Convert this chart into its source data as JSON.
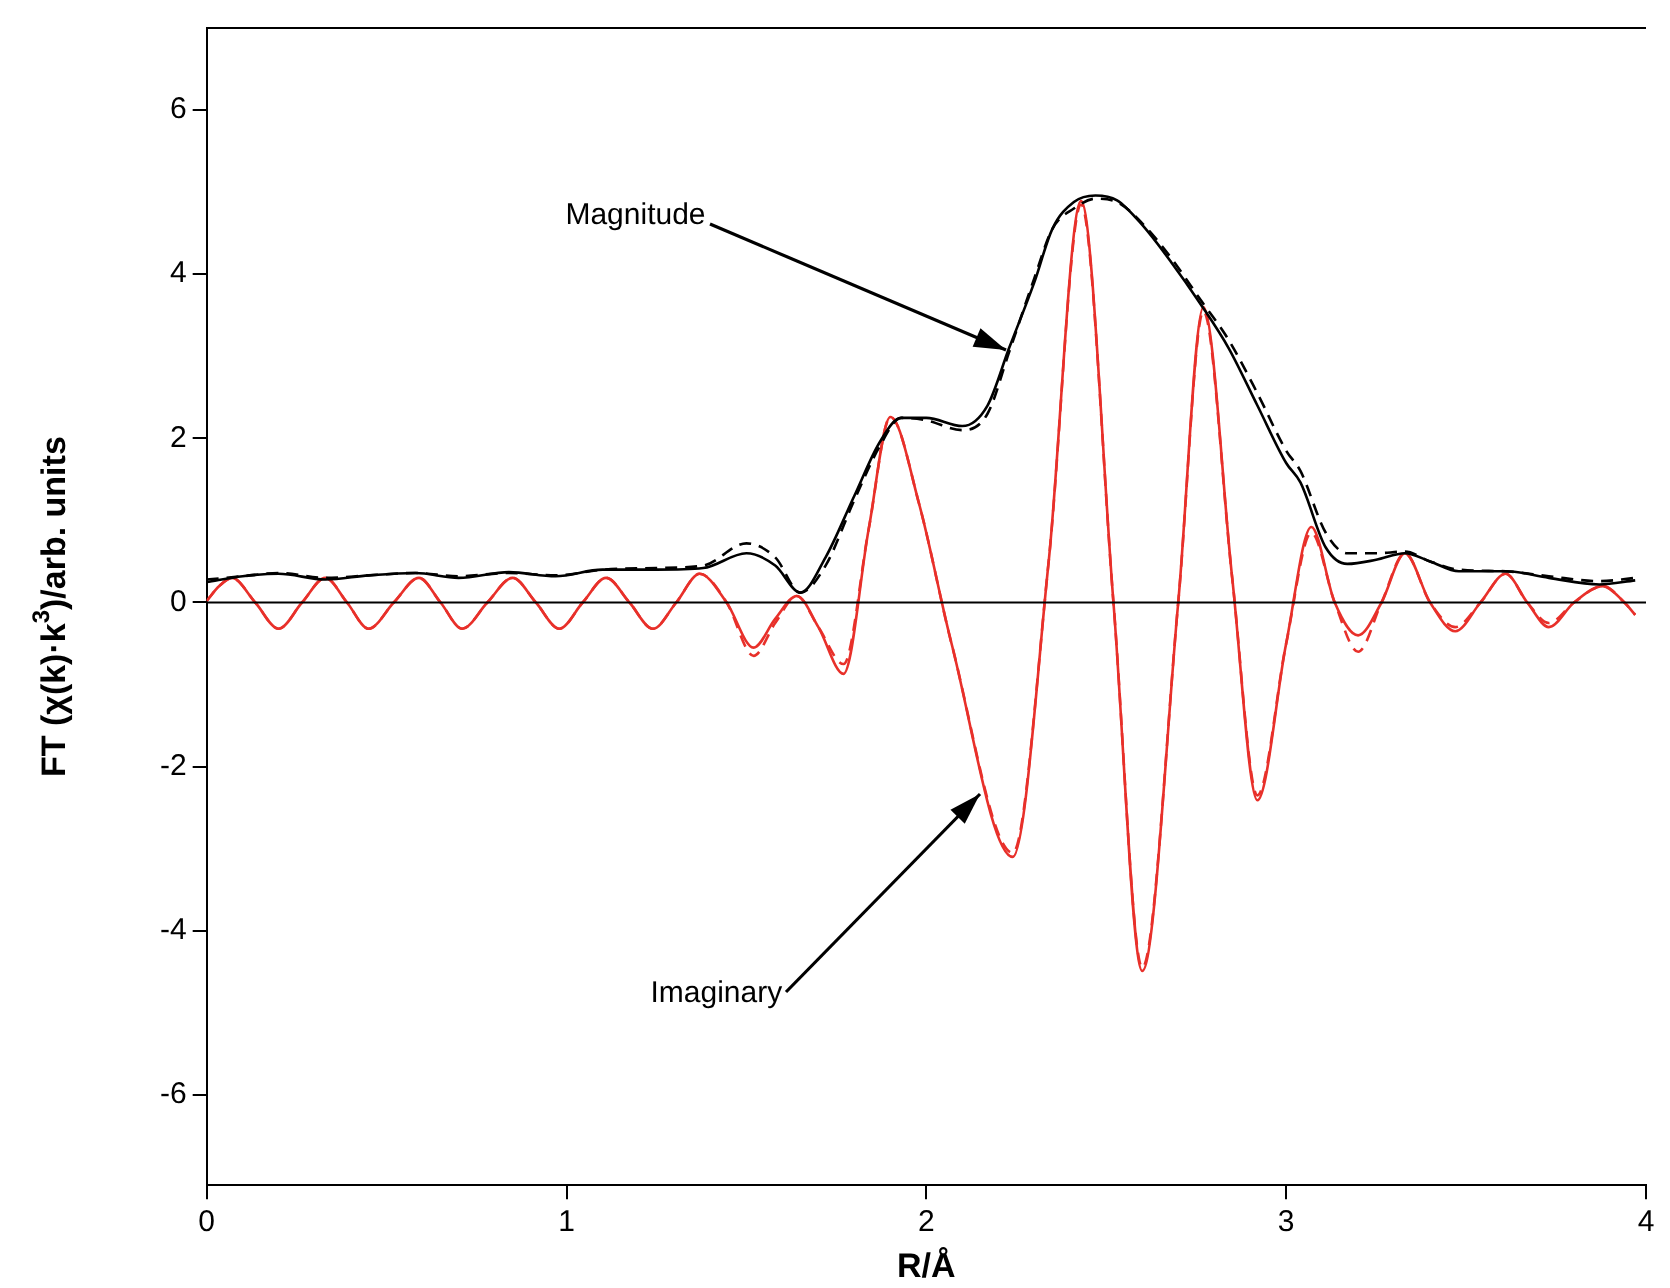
{
  "chart_data": {
    "type": "line",
    "xlabel": "R/Å",
    "ylabel": "FT (χ(k)·k$^{3}$)/arb. units",
    "xlim": [
      0,
      4
    ],
    "ylim": [
      -7.1,
      7
    ],
    "xticks": [
      0,
      1,
      2,
      3,
      4
    ],
    "yticks": [
      -6,
      -4,
      -2,
      0,
      2,
      4,
      6
    ],
    "grid": false,
    "legend": false,
    "marker": "none",
    "ref_lines": [
      {
        "axis": "y",
        "value": 0,
        "color": "#000000"
      }
    ],
    "annotations": [
      {
        "text": "Magnitude",
        "x": 2.22,
        "y": 3.08
      },
      {
        "text": "Imaginary",
        "x": 2.15,
        "y": -2.33
      }
    ],
    "series": [
      {
        "color": "#000000",
        "line_style": "solid",
        "x": [
          0,
          0.1,
          0.2,
          0.33,
          0.45,
          0.58,
          0.7,
          0.84,
          0.97,
          1.1,
          1.25,
          1.38,
          1.5,
          1.58,
          1.65,
          1.72,
          1.8,
          1.87,
          1.93,
          2.0,
          2.1,
          2.17,
          2.23,
          2.3,
          2.35,
          2.41,
          2.47,
          2.53,
          2.6,
          2.68,
          2.76,
          2.84,
          2.92,
          3.0,
          3.04,
          3.11,
          3.17,
          3.25,
          3.33,
          3.4,
          3.48,
          3.61,
          3.73,
          3.87,
          3.97
        ],
        "values": [
          0.25,
          0.32,
          0.35,
          0.28,
          0.33,
          0.36,
          0.3,
          0.37,
          0.32,
          0.4,
          0.4,
          0.42,
          0.6,
          0.45,
          0.12,
          0.55,
          1.3,
          1.95,
          2.25,
          2.25,
          2.15,
          2.4,
          3.1,
          3.9,
          4.55,
          4.88,
          4.96,
          4.9,
          4.6,
          4.15,
          3.65,
          3.1,
          2.4,
          1.7,
          1.46,
          0.67,
          0.47,
          0.52,
          0.6,
          0.5,
          0.38,
          0.38,
          0.3,
          0.22,
          0.27
        ]
      },
      {
        "color": "#000000",
        "line_style": "dashed",
        "x": [
          0,
          0.1,
          0.2,
          0.33,
          0.45,
          0.58,
          0.7,
          0.84,
          0.97,
          1.1,
          1.25,
          1.38,
          1.5,
          1.58,
          1.65,
          1.72,
          1.8,
          1.87,
          1.93,
          2.0,
          2.1,
          2.17,
          2.23,
          2.3,
          2.35,
          2.41,
          2.47,
          2.53,
          2.6,
          2.68,
          2.76,
          2.84,
          2.92,
          3.0,
          3.04,
          3.11,
          3.17,
          3.25,
          3.33,
          3.4,
          3.48,
          3.61,
          3.73,
          3.87,
          3.97
        ],
        "values": [
          0.28,
          0.32,
          0.36,
          0.3,
          0.33,
          0.36,
          0.32,
          0.36,
          0.33,
          0.4,
          0.42,
          0.45,
          0.72,
          0.55,
          0.12,
          0.45,
          1.25,
          1.9,
          2.25,
          2.22,
          2.1,
          2.3,
          3.05,
          3.95,
          4.55,
          4.8,
          4.92,
          4.88,
          4.62,
          4.2,
          3.7,
          3.2,
          2.55,
          1.85,
          1.6,
          0.85,
          0.6,
          0.6,
          0.62,
          0.5,
          0.4,
          0.38,
          0.32,
          0.26,
          0.3
        ]
      },
      {
        "color": "#e8302a",
        "line_style": "solid",
        "x": [
          0,
          0.035,
          0.07,
          0.135,
          0.2,
          0.265,
          0.33,
          0.39,
          0.45,
          0.52,
          0.59,
          0.65,
          0.71,
          0.78,
          0.85,
          0.915,
          0.98,
          1.045,
          1.11,
          1.175,
          1.24,
          1.305,
          1.37,
          1.445,
          1.52,
          1.58,
          1.64,
          1.7,
          1.77,
          1.84,
          1.9,
          1.98,
          2.07,
          2.24,
          2.34,
          2.43,
          2.52,
          2.6,
          2.7,
          2.77,
          2.85,
          2.92,
          3.0,
          3.07,
          3.135,
          3.2,
          3.265,
          3.33,
          3.4,
          3.47,
          3.54,
          3.61,
          3.67,
          3.73,
          3.8,
          3.88,
          3.94,
          3.97
        ],
        "values": [
          0.02,
          0.2,
          0.3,
          0,
          -0.32,
          0,
          0.3,
          0,
          -0.32,
          0,
          0.3,
          0,
          -0.32,
          0,
          0.3,
          0,
          -0.32,
          0,
          0.3,
          0,
          -0.32,
          0,
          0.35,
          0,
          -0.55,
          -0.2,
          0.08,
          -0.3,
          -0.87,
          0.9,
          2.26,
          1.2,
          -0.5,
          -3.1,
          0.5,
          4.89,
          0,
          -4.49,
          0,
          3.6,
          0.3,
          -2.41,
          -0.5,
          0.92,
          0,
          -0.4,
          0,
          0.6,
          0,
          -0.35,
          0,
          0.35,
          0,
          -0.3,
          0,
          0.2,
          0,
          -0.15
        ]
      },
      {
        "color": "#e8302a",
        "line_style": "dashed",
        "x": [
          0,
          0.035,
          0.07,
          0.135,
          0.2,
          0.265,
          0.33,
          0.39,
          0.45,
          0.52,
          0.59,
          0.65,
          0.71,
          0.78,
          0.85,
          0.915,
          0.98,
          1.045,
          1.11,
          1.175,
          1.24,
          1.305,
          1.37,
          1.445,
          1.52,
          1.58,
          1.64,
          1.7,
          1.77,
          1.84,
          1.9,
          1.98,
          2.07,
          2.24,
          2.34,
          2.43,
          2.52,
          2.6,
          2.7,
          2.77,
          2.85,
          2.92,
          3.0,
          3.07,
          3.135,
          3.2,
          3.265,
          3.33,
          3.4,
          3.47,
          3.54,
          3.61,
          3.67,
          3.73,
          3.8,
          3.88,
          3.94,
          3.97
        ],
        "values": [
          0.02,
          0.2,
          0.3,
          0,
          -0.32,
          0,
          0.3,
          0,
          -0.32,
          0,
          0.3,
          0,
          -0.32,
          0,
          0.3,
          0,
          -0.32,
          0,
          0.3,
          0,
          -0.32,
          0,
          0.35,
          0,
          -0.65,
          -0.25,
          0.08,
          -0.3,
          -0.75,
          0.9,
          2.26,
          1.2,
          -0.5,
          -3.05,
          0.5,
          4.85,
          0,
          -4.45,
          0,
          3.55,
          0.3,
          -2.35,
          -0.5,
          0.85,
          0,
          -0.6,
          0,
          0.6,
          0,
          -0.3,
          0,
          0.35,
          0,
          -0.25,
          0,
          0.2,
          0,
          -0.15
        ]
      }
    ]
  }
}
